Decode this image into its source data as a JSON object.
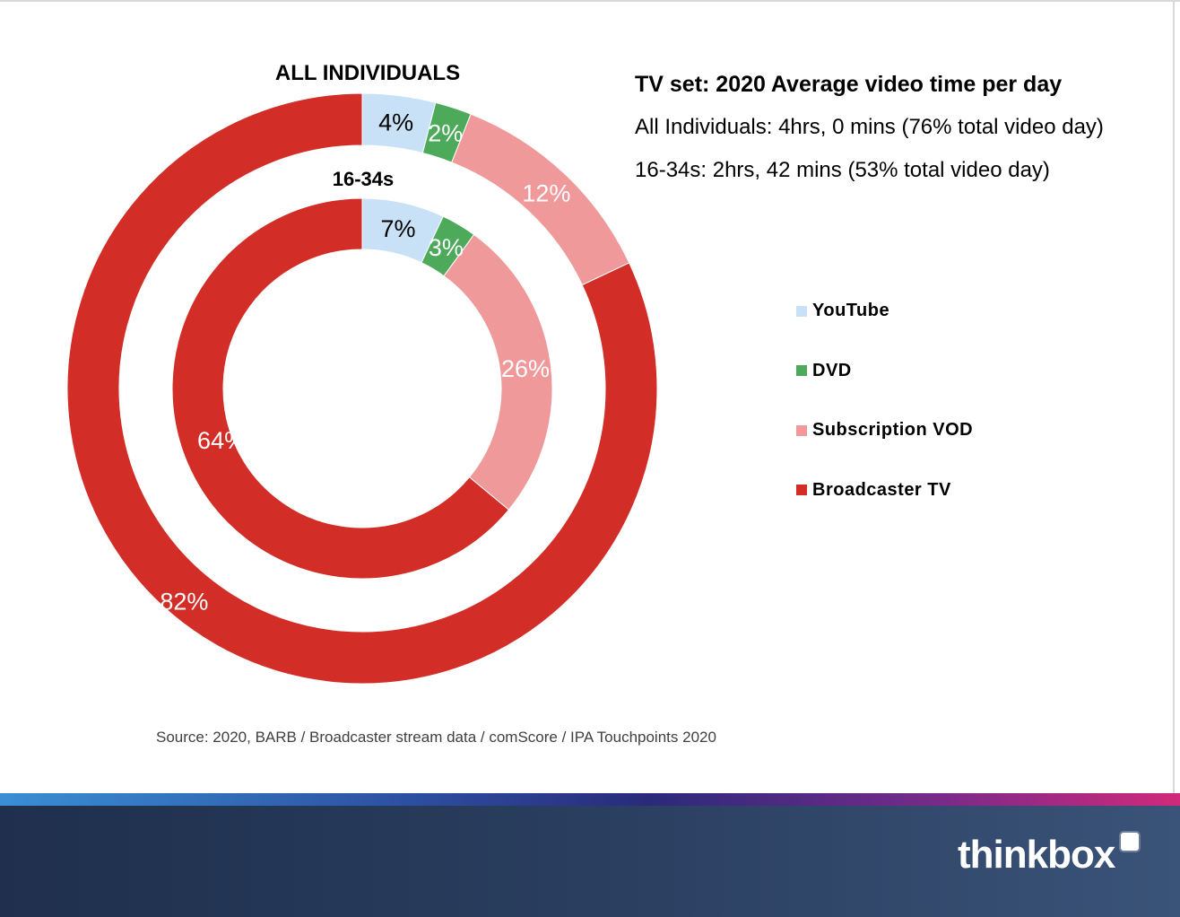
{
  "chart_data": {
    "type": "donut",
    "categories": [
      "YouTube",
      "DVD",
      "Subscription VOD",
      "Broadcaster TV"
    ],
    "colors": [
      "#c9e1f7",
      "#4caa5a",
      "#ef999b",
      "#d22e27"
    ],
    "label_colors": [
      "#000000",
      "#ffffff",
      "#ffffff",
      "#ffffff"
    ],
    "series": [
      {
        "name": "ALL INDIVIDUALS",
        "values": [
          4,
          2,
          12,
          82
        ],
        "labels": [
          "4%",
          "2%",
          "12%",
          "82%"
        ]
      },
      {
        "name": "16-34s",
        "values": [
          7,
          3,
          26,
          64
        ],
        "labels": [
          "7%",
          "3%",
          "26%",
          "64%"
        ]
      }
    ]
  },
  "info": {
    "title": "TV set: 2020 Average video time per day",
    "line1": "All Individuals: 4hrs, 0 mins (76% total video day)",
    "line2": "16-34s: 2hrs, 42 mins (53% total video day)"
  },
  "legend": [
    "YouTube",
    "DVD",
    "Subscription VOD",
    "Broadcaster TV"
  ],
  "source": "Source: 2020, BARB / Broadcaster stream data / comScore / IPA Touchpoints 2020",
  "logo": "thinkbox"
}
